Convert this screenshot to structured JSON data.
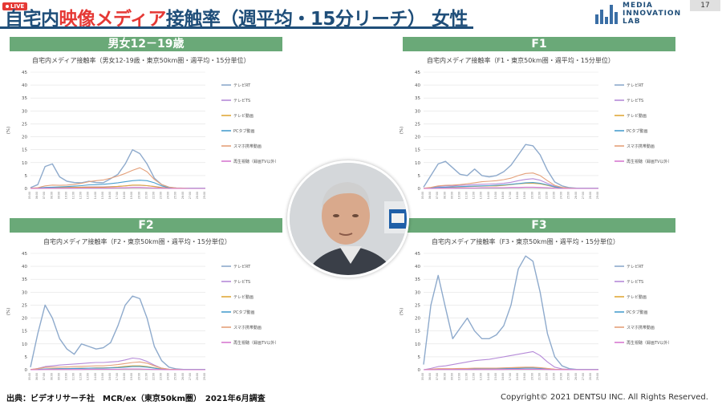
{
  "header": {
    "live_label": "LIVE",
    "title_part1": "自宅内",
    "title_part2": "映像メディア",
    "title_part3": "接触率（週平均・15分リーチ） 女性",
    "logo_line1": "MEDIA",
    "logo_line2": "INNOVATION",
    "logo_line3": "LAB",
    "page_number": "17",
    "title_color": "#1f4e79",
    "highlight_color": "#e53935"
  },
  "footer": {
    "source": "出典：ビデオリサーチ社　MCR/ex（東京50km圏）　2021年6月調査",
    "copyright": "Copyright© 2021 DENTSU INC. All Rights Reserved."
  },
  "series_colors": [
    "#8eaacc",
    "#b58ad8",
    "#e0a93a",
    "#4a9fcf",
    "#e4a07a",
    "#d77ad0"
  ],
  "chart_data": [
    {
      "type": "line",
      "header": "男女12－19歳",
      "title": "自宅内メディア接触率（男女12-19歳・東京50km圏・週平均・15分単位）",
      "ylabel": "(%)",
      "ylim": [
        0,
        45
      ],
      "yticks": [
        0,
        5,
        10,
        15,
        20,
        25,
        30,
        35,
        40,
        45
      ],
      "grid": true,
      "legend_position": "right",
      "x": [
        5,
        6,
        7,
        8,
        9,
        10,
        11,
        12,
        13,
        14,
        15,
        16,
        17,
        18,
        19,
        20,
        21,
        22,
        23,
        24,
        25,
        26,
        27,
        28,
        29
      ],
      "series": [
        {
          "name": "テレビRT",
          "values": [
            0.3,
            1.5,
            8.5,
            9.5,
            4.5,
            2.8,
            2.3,
            2.2,
            2.8,
            2.3,
            2.2,
            3.8,
            5.5,
            9.5,
            15.0,
            13.5,
            9.5,
            4.0,
            1.5,
            0.5,
            0.2,
            0.1,
            0.1,
            0.1,
            0.1
          ]
        },
        {
          "name": "テレビTS",
          "values": [
            0.0,
            0.1,
            0.3,
            0.4,
            0.4,
            0.4,
            0.5,
            0.5,
            0.6,
            0.6,
            0.6,
            0.7,
            0.8,
            1.0,
            1.2,
            1.2,
            1.1,
            0.8,
            0.4,
            0.2,
            0.1,
            0.0,
            0.0,
            0.0,
            0.0
          ]
        },
        {
          "name": "テレビ動画",
          "values": [
            0.0,
            0.1,
            0.3,
            0.3,
            0.3,
            0.3,
            0.4,
            0.5,
            0.5,
            0.5,
            0.5,
            0.6,
            0.8,
            1.0,
            1.3,
            1.3,
            1.1,
            0.7,
            0.3,
            0.1,
            0.0,
            0.0,
            0.0,
            0.0,
            0.0
          ]
        },
        {
          "name": "PCタブ動画",
          "values": [
            0.0,
            0.2,
            0.4,
            0.5,
            0.6,
            0.7,
            0.9,
            1.1,
            1.4,
            1.5,
            1.6,
            1.9,
            2.2,
            2.6,
            3.0,
            3.2,
            3.0,
            2.2,
            1.0,
            0.3,
            0.1,
            0.0,
            0.0,
            0.0,
            0.0
          ]
        },
        {
          "name": "スマホ携帯動画",
          "values": [
            0.1,
            0.3,
            1.0,
            1.3,
            1.2,
            1.3,
            1.6,
            2.0,
            2.6,
            3.0,
            3.3,
            4.0,
            4.8,
            5.8,
            7.0,
            8.0,
            6.5,
            3.5,
            1.5,
            0.5,
            0.2,
            0.1,
            0.0,
            0.0,
            0.0
          ]
        },
        {
          "name": "再生視聴（録画TV以外）",
          "values": [
            0.0,
            0.0,
            0.1,
            0.1,
            0.1,
            0.1,
            0.1,
            0.2,
            0.2,
            0.2,
            0.2,
            0.2,
            0.3,
            0.3,
            0.4,
            0.4,
            0.3,
            0.2,
            0.1,
            0.0,
            0.0,
            0.0,
            0.0,
            0.0,
            0.0
          ]
        }
      ]
    },
    {
      "type": "line",
      "header": "F1",
      "title": "自宅内メディア接触率（F1・東京50km圏・週平均・15分単位）",
      "ylabel": "(%)",
      "ylim": [
        0,
        45
      ],
      "yticks": [
        0,
        5,
        10,
        15,
        20,
        25,
        30,
        35,
        40,
        45
      ],
      "grid": true,
      "legend_position": "right",
      "x": [
        5,
        6,
        7,
        8,
        9,
        10,
        11,
        12,
        13,
        14,
        15,
        16,
        17,
        18,
        19,
        20,
        21,
        22,
        23,
        24,
        25,
        26,
        27,
        28,
        29
      ],
      "series": [
        {
          "name": "テレビRT",
          "values": [
            0.5,
            5.0,
            9.5,
            10.5,
            8.0,
            5.5,
            5.0,
            7.5,
            5.0,
            4.5,
            5.0,
            6.5,
            9.0,
            13.0,
            17.0,
            16.5,
            13.0,
            7.0,
            2.5,
            1.0,
            0.3,
            0.1,
            0.1,
            0.1,
            0.1
          ]
        },
        {
          "name": "テレビTS",
          "values": [
            0.0,
            0.3,
            0.8,
            1.0,
            1.0,
            1.2,
            1.3,
            1.5,
            1.6,
            1.7,
            1.8,
            2.0,
            2.4,
            3.0,
            3.5,
            3.8,
            3.2,
            2.0,
            0.8,
            0.3,
            0.1,
            0.0,
            0.0,
            0.0,
            0.0
          ]
        },
        {
          "name": "テレビ動画",
          "values": [
            0.0,
            0.1,
            0.3,
            0.4,
            0.5,
            0.6,
            0.7,
            0.8,
            0.9,
            1.0,
            1.0,
            1.2,
            1.5,
            1.8,
            2.0,
            2.0,
            1.8,
            1.2,
            0.5,
            0.2,
            0.1,
            0.0,
            0.0,
            0.0,
            0.0
          ]
        },
        {
          "name": "PCタブ動画",
          "values": [
            0.0,
            0.2,
            0.4,
            0.5,
            0.6,
            0.7,
            0.8,
            0.9,
            1.0,
            1.1,
            1.2,
            1.4,
            1.6,
            1.9,
            2.2,
            2.3,
            2.0,
            1.4,
            0.6,
            0.2,
            0.1,
            0.0,
            0.0,
            0.0,
            0.0
          ]
        },
        {
          "name": "スマホ携帯動画",
          "values": [
            0.1,
            0.4,
            1.0,
            1.2,
            1.3,
            1.5,
            1.8,
            2.2,
            2.6,
            2.8,
            3.0,
            3.4,
            4.0,
            5.0,
            5.8,
            6.0,
            5.0,
            3.0,
            1.2,
            0.4,
            0.1,
            0.0,
            0.0,
            0.0,
            0.0
          ]
        },
        {
          "name": "再生視聴（録画TV以外）",
          "values": [
            0.0,
            0.0,
            0.1,
            0.1,
            0.1,
            0.2,
            0.2,
            0.2,
            0.3,
            0.3,
            0.3,
            0.3,
            0.4,
            0.4,
            0.5,
            0.5,
            0.4,
            0.3,
            0.1,
            0.0,
            0.0,
            0.0,
            0.0,
            0.0,
            0.0
          ]
        }
      ]
    },
    {
      "type": "line",
      "header": "F2",
      "title": "自宅内メディア接触率（F2・東京50km圏・週平均・15分単位）",
      "ylabel": "(%)",
      "ylim": [
        0,
        45
      ],
      "yticks": [
        0,
        5,
        10,
        15,
        20,
        25,
        30,
        35,
        40,
        45
      ],
      "grid": true,
      "legend_position": "right",
      "x": [
        5,
        6,
        7,
        8,
        9,
        10,
        11,
        12,
        13,
        14,
        15,
        16,
        17,
        18,
        19,
        20,
        21,
        22,
        23,
        24,
        25,
        26,
        27,
        28,
        29
      ],
      "series": [
        {
          "name": "テレビRT",
          "values": [
            1.0,
            14.0,
            25.0,
            20.0,
            12.0,
            8.0,
            6.0,
            10.0,
            9.0,
            8.0,
            8.5,
            10.5,
            17.0,
            25.0,
            28.5,
            27.5,
            20.0,
            9.0,
            3.5,
            1.0,
            0.3,
            0.1,
            0.1,
            0.1,
            0.1
          ]
        },
        {
          "name": "テレビTS",
          "values": [
            0.0,
            0.5,
            1.2,
            1.5,
            1.8,
            2.0,
            2.2,
            2.4,
            2.6,
            2.8,
            2.8,
            3.0,
            3.2,
            3.8,
            4.5,
            4.2,
            3.2,
            1.8,
            0.6,
            0.2,
            0.1,
            0.0,
            0.0,
            0.0,
            0.0
          ]
        },
        {
          "name": "テレビ動画",
          "values": [
            0.0,
            0.1,
            0.3,
            0.4,
            0.4,
            0.5,
            0.5,
            0.6,
            0.6,
            0.7,
            0.7,
            0.8,
            1.0,
            1.3,
            1.5,
            1.5,
            1.2,
            0.7,
            0.3,
            0.1,
            0.0,
            0.0,
            0.0,
            0.0,
            0.0
          ]
        },
        {
          "name": "PCタブ動画",
          "values": [
            0.0,
            0.1,
            0.3,
            0.3,
            0.4,
            0.4,
            0.5,
            0.5,
            0.6,
            0.6,
            0.6,
            0.7,
            0.8,
            1.0,
            1.2,
            1.2,
            1.0,
            0.6,
            0.2,
            0.1,
            0.0,
            0.0,
            0.0,
            0.0,
            0.0
          ]
        },
        {
          "name": "スマホ携帯動画",
          "values": [
            0.1,
            0.4,
            0.9,
            1.0,
            1.0,
            1.1,
            1.2,
            1.3,
            1.4,
            1.5,
            1.5,
            1.7,
            2.0,
            2.4,
            2.8,
            3.0,
            2.5,
            1.5,
            0.6,
            0.2,
            0.1,
            0.0,
            0.0,
            0.0,
            0.0
          ]
        },
        {
          "name": "再生視聴（録画TV以外）",
          "values": [
            0.0,
            0.0,
            0.1,
            0.1,
            0.1,
            0.1,
            0.1,
            0.1,
            0.2,
            0.2,
            0.2,
            0.2,
            0.2,
            0.3,
            0.3,
            0.3,
            0.2,
            0.1,
            0.1,
            0.0,
            0.0,
            0.0,
            0.0,
            0.0,
            0.0
          ]
        }
      ]
    },
    {
      "type": "line",
      "header": "F3",
      "title": "自宅内メディア接触率（F3・東京50km圏・週平均・15分単位）",
      "ylabel": "(%)",
      "ylim": [
        0,
        45
      ],
      "yticks": [
        0,
        5,
        10,
        15,
        20,
        25,
        30,
        35,
        40,
        45
      ],
      "grid": true,
      "legend_position": "right",
      "x": [
        5,
        6,
        7,
        8,
        9,
        10,
        11,
        12,
        13,
        14,
        15,
        16,
        17,
        18,
        19,
        20,
        21,
        22,
        23,
        24,
        25,
        26,
        27,
        28,
        29
      ],
      "series": [
        {
          "name": "テレビRT",
          "values": [
            2.0,
            25.0,
            36.5,
            24.0,
            12.0,
            16.0,
            20.0,
            15.0,
            12.0,
            12.0,
            13.5,
            17.0,
            25.0,
            39.0,
            44.0,
            42.0,
            30.0,
            14.0,
            5.0,
            1.5,
            0.4,
            0.1,
            0.1,
            0.1,
            0.1
          ]
        },
        {
          "name": "テレビTS",
          "values": [
            0.0,
            0.5,
            1.2,
            1.5,
            2.0,
            2.5,
            3.0,
            3.5,
            3.8,
            4.0,
            4.5,
            5.0,
            5.5,
            6.0,
            6.5,
            7.0,
            5.5,
            3.0,
            1.0,
            0.3,
            0.1,
            0.0,
            0.0,
            0.0,
            0.0
          ]
        },
        {
          "name": "テレビ動画",
          "values": [
            0.0,
            0.1,
            0.2,
            0.2,
            0.3,
            0.3,
            0.4,
            0.4,
            0.4,
            0.4,
            0.5,
            0.5,
            0.6,
            0.7,
            0.8,
            0.8,
            0.7,
            0.4,
            0.2,
            0.1,
            0.0,
            0.0,
            0.0,
            0.0,
            0.0
          ]
        },
        {
          "name": "PCタブ動画",
          "values": [
            0.0,
            0.1,
            0.2,
            0.2,
            0.3,
            0.3,
            0.3,
            0.3,
            0.4,
            0.4,
            0.4,
            0.4,
            0.5,
            0.5,
            0.6,
            0.6,
            0.5,
            0.3,
            0.1,
            0.0,
            0.0,
            0.0,
            0.0,
            0.0,
            0.0
          ]
        },
        {
          "name": "スマホ携帯動画",
          "values": [
            0.0,
            0.2,
            0.4,
            0.4,
            0.4,
            0.5,
            0.5,
            0.6,
            0.6,
            0.6,
            0.6,
            0.7,
            0.8,
            0.9,
            1.0,
            1.0,
            0.8,
            0.5,
            0.2,
            0.1,
            0.0,
            0.0,
            0.0,
            0.0,
            0.0
          ]
        },
        {
          "name": "再生視聴（録画TV以外）",
          "values": [
            0.0,
            0.0,
            0.1,
            0.1,
            0.1,
            0.1,
            0.1,
            0.1,
            0.1,
            0.1,
            0.1,
            0.1,
            0.2,
            0.2,
            0.2,
            0.2,
            0.2,
            0.1,
            0.0,
            0.0,
            0.0,
            0.0,
            0.0,
            0.0,
            0.0
          ]
        }
      ]
    }
  ]
}
